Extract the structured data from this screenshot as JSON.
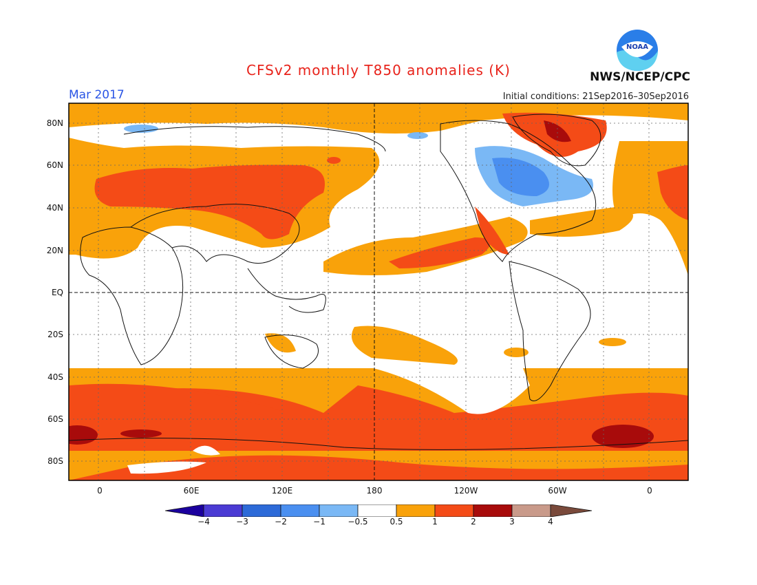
{
  "header": {
    "title": "CFSv2 monthly T850 anomalies (K)",
    "valid_date": "Mar 2017",
    "initial_conditions": "Initial conditions: 21Sep2016–30Sep2016",
    "organization": "NWS/NCEP/CPC",
    "logo_text": "NOAA"
  },
  "axes": {
    "lat_labels": [
      "80N",
      "60N",
      "40N",
      "20N",
      "EQ",
      "20S",
      "40S",
      "60S",
      "80S"
    ],
    "lon_labels": [
      "0",
      "60E",
      "120E",
      "180",
      "120W",
      "60W",
      "0"
    ]
  },
  "colorbar": {
    "labels": [
      "−4",
      "−3",
      "−2",
      "−1",
      "−0.5",
      "0.5",
      "1",
      "2",
      "3",
      "4"
    ],
    "colors": [
      "#1b009e",
      "#4b3bd4",
      "#2d6ad8",
      "#4a8ff0",
      "#7ab8f5",
      "#ffffff",
      "#f9a20a",
      "#f44b17",
      "#a80b0b",
      "#c99a8a",
      "#7a4a3b"
    ]
  },
  "palette": {
    "warm1": "#f9a20a",
    "warm2": "#f44b17",
    "warm3": "#a80b0b",
    "cool1": "#7ab8f5",
    "cool2": "#4a8ff0",
    "cool3": "#2d6ad8"
  }
}
